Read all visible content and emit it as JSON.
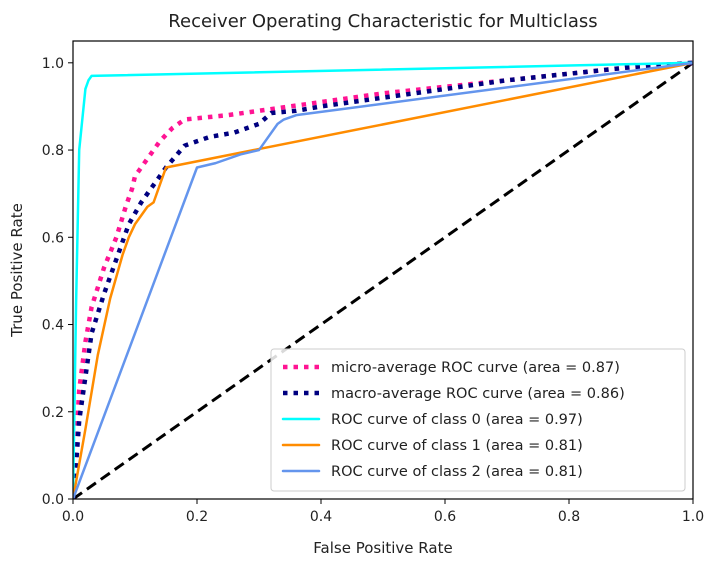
{
  "chart_data": {
    "type": "line",
    "title": "Receiver Operating Characteristic for Multiclass",
    "xlabel": "False Positive Rate",
    "ylabel": "True Positive Rate",
    "xlim": [
      0.0,
      1.0
    ],
    "ylim": [
      0.0,
      1.05
    ],
    "x_ticks": [
      "0.0",
      "0.2",
      "0.4",
      "0.6",
      "0.8",
      "1.0"
    ],
    "y_ticks": [
      "0.0",
      "0.2",
      "0.4",
      "0.6",
      "0.8",
      "1.0"
    ],
    "grid": false,
    "legend_position": "lower-right",
    "series": [
      {
        "name": "micro-average ROC curve (area = 0.87)",
        "color": "#ff1493",
        "style": "dotted",
        "x": [
          0.0,
          0.005,
          0.01,
          0.02,
          0.03,
          0.05,
          0.07,
          0.085,
          0.095,
          0.1,
          0.12,
          0.14,
          0.16,
          0.18,
          0.25,
          0.3,
          0.4,
          0.5,
          0.6,
          0.7,
          0.8,
          0.9,
          1.0
        ],
        "y": [
          0.0,
          0.12,
          0.25,
          0.36,
          0.44,
          0.53,
          0.6,
          0.67,
          0.71,
          0.74,
          0.78,
          0.82,
          0.85,
          0.87,
          0.88,
          0.89,
          0.91,
          0.93,
          0.945,
          0.96,
          0.975,
          0.99,
          1.0
        ]
      },
      {
        "name": "macro-average ROC curve (area = 0.86)",
        "color": "#000080",
        "style": "dotted",
        "x": [
          0.0,
          0.005,
          0.01,
          0.02,
          0.03,
          0.05,
          0.07,
          0.09,
          0.11,
          0.13,
          0.15,
          0.18,
          0.22,
          0.26,
          0.3,
          0.32,
          0.36,
          0.4,
          0.5,
          0.6,
          0.7,
          0.8,
          0.9,
          1.0
        ],
        "y": [
          0.0,
          0.08,
          0.18,
          0.28,
          0.38,
          0.47,
          0.55,
          0.63,
          0.68,
          0.72,
          0.76,
          0.81,
          0.83,
          0.84,
          0.86,
          0.885,
          0.89,
          0.9,
          0.92,
          0.94,
          0.96,
          0.975,
          0.99,
          1.0
        ]
      },
      {
        "name": "ROC curve of class 0 (area = 0.97)",
        "color": "#00ffff",
        "style": "solid",
        "x": [
          0.0,
          0.005,
          0.01,
          0.02,
          0.025,
          0.03,
          1.0
        ],
        "y": [
          0.0,
          0.45,
          0.8,
          0.94,
          0.96,
          0.97,
          1.0
        ]
      },
      {
        "name": "ROC curve of class 1 (area = 0.81)",
        "color": "#ff8c00",
        "style": "solid",
        "x": [
          0.0,
          0.02,
          0.04,
          0.06,
          0.08,
          0.09,
          0.1,
          0.11,
          0.12,
          0.13,
          0.145,
          0.15,
          1.0
        ],
        "y": [
          0.0,
          0.16,
          0.33,
          0.46,
          0.56,
          0.6,
          0.63,
          0.65,
          0.67,
          0.68,
          0.74,
          0.76,
          1.0
        ]
      },
      {
        "name": "ROC curve of class 2 (area = 0.81)",
        "color": "#6495ed",
        "style": "solid",
        "x": [
          0.0,
          0.2,
          0.23,
          0.27,
          0.3,
          0.31,
          0.33,
          0.34,
          0.36,
          1.0
        ],
        "y": [
          0.0,
          0.76,
          0.77,
          0.79,
          0.8,
          0.82,
          0.86,
          0.87,
          0.88,
          1.0
        ]
      },
      {
        "color": "#000000",
        "style": "dashed",
        "x": [
          0.0,
          1.0
        ],
        "y": [
          0.0,
          1.0
        ]
      }
    ]
  }
}
